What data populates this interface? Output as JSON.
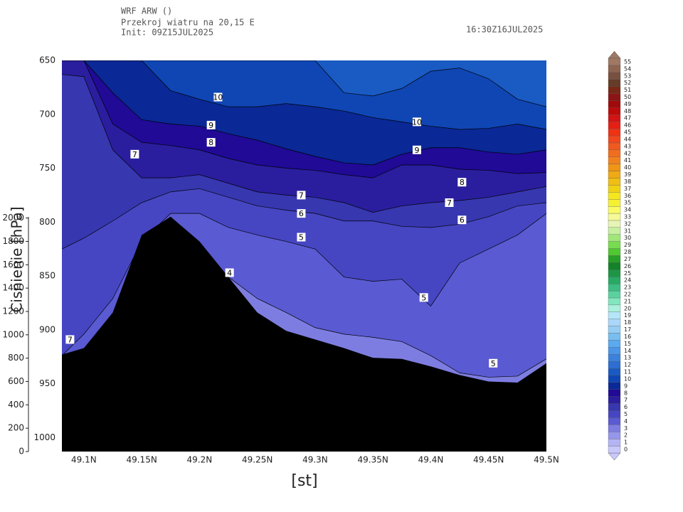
{
  "chart_data": {
    "type": "contour",
    "header": [
      "WRF ARW ()",
      "Przekroj wiatru na 20,15 E",
      "Init: 09Z15JUL2025"
    ],
    "valid_time": "16:30Z16JUL2025",
    "xlabel": "[st]",
    "ylabel": "Cisnienie [hPa]",
    "xlim": [
      49.081,
      49.5
    ],
    "xticks": [
      {
        "value": 49.1,
        "label": "49.1N"
      },
      {
        "value": 49.15,
        "label": "49.15N"
      },
      {
        "value": 49.2,
        "label": "49.2N"
      },
      {
        "value": 49.25,
        "label": "49.25N"
      },
      {
        "value": 49.3,
        "label": "49.3N"
      },
      {
        "value": 49.35,
        "label": "49.35N"
      },
      {
        "value": 49.4,
        "label": "49.4N"
      },
      {
        "value": 49.45,
        "label": "49.45N"
      },
      {
        "value": 49.5,
        "label": "49.5N"
      }
    ],
    "ylim": [
      1013,
      650
    ],
    "yticks": [
      650,
      700,
      750,
      800,
      850,
      900,
      950,
      1000
    ],
    "y2lim": [
      0,
      3350
    ],
    "y2ticks": [
      0,
      200,
      400,
      600,
      800,
      1000,
      1200,
      1400,
      1600,
      1800,
      2000
    ],
    "x": [
      49.081,
      49.1,
      49.125,
      49.15,
      49.175,
      49.2,
      49.225,
      49.25,
      49.275,
      49.3,
      49.325,
      49.35,
      49.375,
      49.4,
      49.425,
      49.45,
      49.475,
      49.5
    ],
    "min_level": 3,
    "contours": [
      {
        "level": 4,
        "values": [
          990,
          990,
          963,
          924,
          898,
          871,
          851,
          871,
          884,
          898,
          904,
          907,
          911,
          924,
          940,
          944,
          943,
          927
        ]
      },
      {
        "level": 5,
        "values": [
          924,
          904,
          871,
          818,
          792,
          792,
          805,
          812,
          818,
          825,
          851,
          855,
          853,
          878,
          838,
          825,
          812,
          792
        ]
      },
      {
        "level": 6,
        "values": [
          825,
          815,
          799,
          782,
          772,
          769,
          777,
          785,
          789,
          792,
          799,
          799,
          804,
          805,
          802,
          795,
          785,
          782
        ]
      },
      {
        "level": 7,
        "values": [
          663,
          665,
          733,
          759,
          759,
          756,
          764,
          772,
          775,
          777,
          782,
          791,
          785,
          782,
          780,
          777,
          772,
          767
        ]
      },
      {
        "level": 8,
        "values": [
          650,
          650,
          709,
          726,
          729,
          733,
          741,
          747,
          750,
          752,
          756,
          759,
          747,
          747,
          751,
          752,
          755,
          754
        ]
      },
      {
        "level": 9,
        "values": [
          650,
          650,
          680,
          705,
          709,
          711,
          718,
          724,
          732,
          739,
          745,
          747,
          737,
          731,
          731,
          735,
          737,
          733
        ]
      },
      {
        "level": 10,
        "values": [
          650,
          650,
          650,
          650,
          678,
          686,
          693,
          693,
          690,
          693,
          697,
          703,
          707,
          711,
          714,
          713,
          709,
          714
        ]
      },
      {
        "level": 11,
        "values": [
          650,
          650,
          650,
          650,
          650,
          650,
          650,
          650,
          650,
          650,
          680,
          683,
          676,
          660,
          657,
          667,
          686,
          693
        ]
      }
    ],
    "terrain": {
      "color": "#000000",
      "values": [
        923,
        917,
        884,
        812,
        795,
        818,
        851,
        884,
        901,
        909,
        917,
        926,
        927,
        934,
        942,
        948,
        949,
        931
      ]
    },
    "contour_labels": [
      {
        "value": 10,
        "x": 49.216,
        "y": 684
      },
      {
        "value": 9,
        "x": 49.21,
        "y": 710
      },
      {
        "value": 8,
        "x": 49.21,
        "y": 726
      },
      {
        "value": 7,
        "x": 49.144,
        "y": 737
      },
      {
        "value": 7,
        "x": 49.088,
        "y": 909
      },
      {
        "value": 10,
        "x": 49.388,
        "y": 707
      },
      {
        "value": 9,
        "x": 49.388,
        "y": 733
      },
      {
        "value": 8,
        "x": 49.427,
        "y": 763
      },
      {
        "value": 7,
        "x": 49.416,
        "y": 782
      },
      {
        "value": 6,
        "x": 49.427,
        "y": 798
      },
      {
        "value": 7,
        "x": 49.288,
        "y": 775
      },
      {
        "value": 6,
        "x": 49.288,
        "y": 792
      },
      {
        "value": 5,
        "x": 49.288,
        "y": 814
      },
      {
        "value": 4,
        "x": 49.226,
        "y": 847
      },
      {
        "value": 5,
        "x": 49.394,
        "y": 870
      },
      {
        "value": 5,
        "x": 49.454,
        "y": 931
      }
    ],
    "levels": [
      0,
      1,
      2,
      3,
      4,
      5,
      6,
      7,
      8,
      9,
      10,
      11,
      12,
      13,
      14,
      15,
      16,
      17,
      18,
      19,
      20,
      21,
      22,
      23,
      24,
      25,
      26,
      27,
      28,
      29,
      30,
      31,
      32,
      33,
      34,
      35,
      36,
      37,
      38,
      39,
      40,
      41,
      42,
      43,
      44,
      45,
      46,
      47,
      48,
      49,
      50,
      51,
      52,
      53,
      54,
      55
    ],
    "colors": [
      "#c8c8fa",
      "#b4b4f5",
      "#9696eb",
      "#7d7de1",
      "#5a5ad2",
      "#4646c3",
      "#3737b0",
      "#2a1e9e",
      "#200a96",
      "#0a2896",
      "#0f46b4",
      "#1a5ac3",
      "#2d6ed2",
      "#3c82dc",
      "#4b96e6",
      "#5aaaf0",
      "#78bef0",
      "#96cdf5",
      "#aad7fa",
      "#b4e6fa",
      "#aaf0dc",
      "#82e6be",
      "#5ad2a0",
      "#3cbe82",
      "#28aa64",
      "#1e9646",
      "#148228",
      "#28a028",
      "#50c832",
      "#78dc50",
      "#a0e678",
      "#c8f0a0",
      "#e6f5b4",
      "#f5fa96",
      "#fafa64",
      "#f5f032",
      "#f5e61e",
      "#f0d214",
      "#f0be14",
      "#f0aa14",
      "#f09614",
      "#f0821e",
      "#f06e1e",
      "#f05a1e",
      "#f0461e",
      "#f03214",
      "#e61e14",
      "#d21414",
      "#be0a0a",
      "#a00a0a",
      "#8c1414",
      "#782814",
      "#643c28",
      "#785040",
      "#8c6450",
      "#a07864"
    ]
  }
}
